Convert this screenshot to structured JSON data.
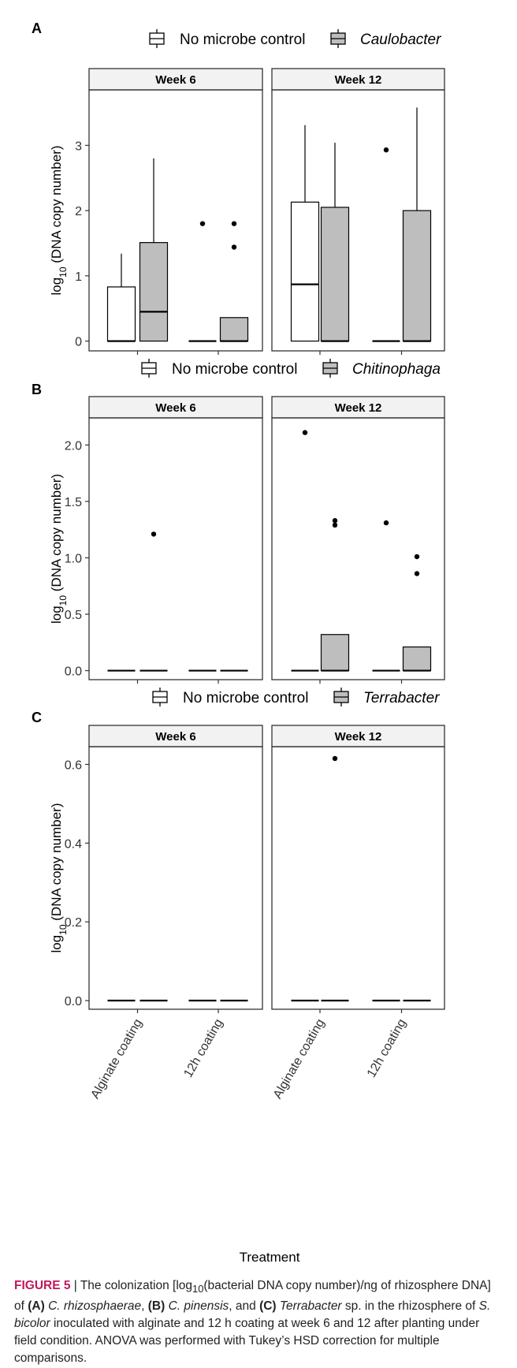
{
  "figure": {
    "caption_label": "FIGURE 5",
    "caption_sep": " | ",
    "caption_parts": [
      {
        "t": "The colonization [log",
        "s": ""
      },
      {
        "t": "10",
        "s": "sub"
      },
      {
        "t": "(bacterial DNA copy number)/ng of rhizosphere DNA] of ",
        "s": ""
      },
      {
        "t": "(A)",
        "s": "b"
      },
      {
        "t": " ",
        "s": ""
      },
      {
        "t": "C. rhizosphaerae",
        "s": "i"
      },
      {
        "t": ", ",
        "s": ""
      },
      {
        "t": "(B)",
        "s": "b"
      },
      {
        "t": " ",
        "s": ""
      },
      {
        "t": "C. pinensis",
        "s": "i"
      },
      {
        "t": ", and ",
        "s": ""
      },
      {
        "t": "(C)",
        "s": "b"
      },
      {
        "t": " ",
        "s": ""
      },
      {
        "t": "Terrabacter",
        "s": "i"
      },
      {
        "t": " sp. in the rhizosphere of ",
        "s": ""
      },
      {
        "t": "S. bicolor",
        "s": "i"
      },
      {
        "t": " inoculated with alginate and 12 h coating at week 6 and 12 after planting under field condition. ANOVA was performed with Tukey’s HSD correction for multiple comparisons.",
        "s": ""
      }
    ]
  },
  "colors": {
    "control_fill": "#ffffff",
    "microbe_fill": "#bebebe",
    "strip_fill": "#f2f2f2",
    "frame": "#333333"
  },
  "chart_data": [
    {
      "panel": "A",
      "type": "boxplot",
      "legend": [
        "No microbe control",
        "Caulobacter"
      ],
      "legend_italic": [
        false,
        true
      ],
      "ylabel_prefix": "log",
      "ylabel_sub": "10",
      "ylabel_suffix": " (DNA copy number)",
      "ylim": [
        -0.15,
        3.85
      ],
      "yticks": [
        0,
        1,
        2,
        3
      ],
      "ytick_labels": [
        "0",
        "1",
        "2",
        "3"
      ],
      "facets": [
        "Week 6",
        "Week 12"
      ],
      "categories": [
        "Alginate coating",
        "12h coating"
      ],
      "boxes": [
        {
          "facet": 0,
          "category": 0,
          "group": 0,
          "q1": 0,
          "median": 0,
          "q3": 0.83,
          "whisker_low": 0,
          "whisker_high": 1.34,
          "outliers": []
        },
        {
          "facet": 0,
          "category": 0,
          "group": 1,
          "q1": 0,
          "median": 0.45,
          "q3": 1.51,
          "whisker_low": 0,
          "whisker_high": 2.8,
          "outliers": []
        },
        {
          "facet": 0,
          "category": 1,
          "group": 0,
          "q1": 0,
          "median": 0,
          "q3": 0,
          "whisker_low": 0,
          "whisker_high": 0,
          "outliers": [
            1.8
          ]
        },
        {
          "facet": 0,
          "category": 1,
          "group": 1,
          "q1": 0,
          "median": 0,
          "q3": 0.36,
          "whisker_low": 0,
          "whisker_high": 0.36,
          "outliers": [
            1.8,
            1.44
          ]
        },
        {
          "facet": 1,
          "category": 0,
          "group": 0,
          "q1": 0,
          "median": 0.87,
          "q3": 2.13,
          "whisker_low": 0,
          "whisker_high": 3.31,
          "outliers": []
        },
        {
          "facet": 1,
          "category": 0,
          "group": 1,
          "q1": 0,
          "median": 0,
          "q3": 2.05,
          "whisker_low": 0,
          "whisker_high": 3.04,
          "outliers": []
        },
        {
          "facet": 1,
          "category": 1,
          "group": 0,
          "q1": 0,
          "median": 0,
          "q3": 0,
          "whisker_low": 0,
          "whisker_high": 0,
          "outliers": [
            2.93
          ]
        },
        {
          "facet": 1,
          "category": 1,
          "group": 1,
          "q1": 0,
          "median": 0,
          "q3": 2.0,
          "whisker_low": 0,
          "whisker_high": 3.58,
          "outliers": []
        }
      ]
    },
    {
      "panel": "B",
      "type": "boxplot",
      "legend": [
        "No microbe control",
        "Chitinophaga"
      ],
      "legend_italic": [
        false,
        true
      ],
      "ylabel_prefix": "log",
      "ylabel_sub": "10",
      "ylabel_suffix": " (DNA copy number)",
      "ylim": [
        -0.08,
        2.24
      ],
      "yticks": [
        0,
        0.5,
        1,
        1.5,
        2
      ],
      "ytick_labels": [
        "0.0",
        "0.5",
        "1.0",
        "1.5",
        "2.0"
      ],
      "facets": [
        "Week 6",
        "Week 12"
      ],
      "categories": [
        "Alginate coating",
        "12h coating"
      ],
      "boxes": [
        {
          "facet": 0,
          "category": 0,
          "group": 0,
          "q1": 0,
          "median": 0,
          "q3": 0,
          "whisker_low": 0,
          "whisker_high": 0,
          "outliers": []
        },
        {
          "facet": 0,
          "category": 0,
          "group": 1,
          "q1": 0,
          "median": 0,
          "q3": 0,
          "whisker_low": 0,
          "whisker_high": 0,
          "outliers": [
            1.21
          ]
        },
        {
          "facet": 0,
          "category": 1,
          "group": 0,
          "q1": 0,
          "median": 0,
          "q3": 0,
          "whisker_low": 0,
          "whisker_high": 0,
          "outliers": []
        },
        {
          "facet": 0,
          "category": 1,
          "group": 1,
          "q1": 0,
          "median": 0,
          "q3": 0,
          "whisker_low": 0,
          "whisker_high": 0,
          "outliers": []
        },
        {
          "facet": 1,
          "category": 0,
          "group": 0,
          "q1": 0,
          "median": 0,
          "q3": 0,
          "whisker_low": 0,
          "whisker_high": 0,
          "outliers": [
            2.11
          ]
        },
        {
          "facet": 1,
          "category": 0,
          "group": 1,
          "q1": 0,
          "median": 0,
          "q3": 0.32,
          "whisker_low": 0,
          "whisker_high": 0.32,
          "outliers": [
            1.33,
            1.29
          ]
        },
        {
          "facet": 1,
          "category": 1,
          "group": 0,
          "q1": 0,
          "median": 0,
          "q3": 0,
          "whisker_low": 0,
          "whisker_high": 0,
          "outliers": [
            1.31
          ]
        },
        {
          "facet": 1,
          "category": 1,
          "group": 1,
          "q1": 0,
          "median": 0,
          "q3": 0.21,
          "whisker_low": 0,
          "whisker_high": 0.21,
          "outliers": [
            1.01,
            0.86
          ]
        }
      ]
    },
    {
      "panel": "C",
      "type": "boxplot",
      "legend": [
        "No microbe control",
        "Terrabacter"
      ],
      "legend_italic": [
        false,
        true
      ],
      "ylabel_prefix": "log",
      "ylabel_sub": "10",
      "ylabel_suffix": " (DNA copy number)",
      "ylim": [
        -0.022,
        0.645
      ],
      "yticks": [
        0,
        0.2,
        0.4,
        0.6
      ],
      "ytick_labels": [
        "0.0",
        "0.2",
        "0.4",
        "0.6"
      ],
      "facets": [
        "Week 6",
        "Week 12"
      ],
      "categories": [
        "Alginate coating",
        "12h coating"
      ],
      "xlabel": "Treatment",
      "boxes": [
        {
          "facet": 0,
          "category": 0,
          "group": 0,
          "q1": 0,
          "median": 0,
          "q3": 0,
          "whisker_low": 0,
          "whisker_high": 0,
          "outliers": []
        },
        {
          "facet": 0,
          "category": 0,
          "group": 1,
          "q1": 0,
          "median": 0,
          "q3": 0,
          "whisker_low": 0,
          "whisker_high": 0,
          "outliers": []
        },
        {
          "facet": 0,
          "category": 1,
          "group": 0,
          "q1": 0,
          "median": 0,
          "q3": 0,
          "whisker_low": 0,
          "whisker_high": 0,
          "outliers": []
        },
        {
          "facet": 0,
          "category": 1,
          "group": 1,
          "q1": 0,
          "median": 0,
          "q3": 0,
          "whisker_low": 0,
          "whisker_high": 0,
          "outliers": []
        },
        {
          "facet": 1,
          "category": 0,
          "group": 0,
          "q1": 0,
          "median": 0,
          "q3": 0,
          "whisker_low": 0,
          "whisker_high": 0,
          "outliers": []
        },
        {
          "facet": 1,
          "category": 0,
          "group": 1,
          "q1": 0,
          "median": 0,
          "q3": 0,
          "whisker_low": 0,
          "whisker_high": 0,
          "outliers": [
            0.615
          ]
        },
        {
          "facet": 1,
          "category": 1,
          "group": 0,
          "q1": 0,
          "median": 0,
          "q3": 0,
          "whisker_low": 0,
          "whisker_high": 0,
          "outliers": []
        },
        {
          "facet": 1,
          "category": 1,
          "group": 1,
          "q1": 0,
          "median": 0,
          "q3": 0,
          "whisker_low": 0,
          "whisker_high": 0,
          "outliers": []
        }
      ]
    }
  ]
}
